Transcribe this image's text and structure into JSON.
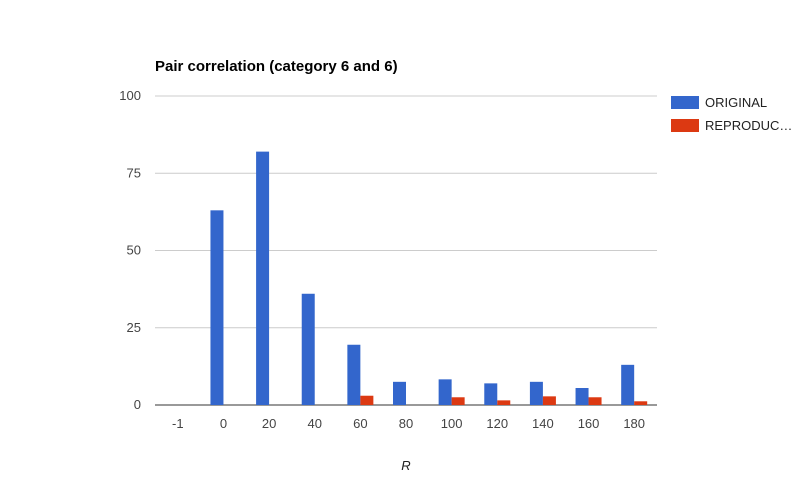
{
  "chart_data": {
    "type": "bar",
    "title": "Pair correlation (category 6 and 6)",
    "xlabel": "R",
    "ylabel": "",
    "categories": [
      "-1",
      "0",
      "20",
      "40",
      "60",
      "80",
      "100",
      "120",
      "140",
      "160",
      "180"
    ],
    "series": [
      {
        "name": "ORIGINAL",
        "color": "#3366cc",
        "values": [
          0,
          63,
          82,
          36,
          19.5,
          7.5,
          8.3,
          7,
          7.5,
          5.5,
          13
        ]
      },
      {
        "name": "REPRODUC…",
        "color": "#dc3912",
        "values": [
          0,
          0,
          0,
          0,
          3,
          0,
          2.5,
          1.5,
          2.8,
          2.5,
          1.2
        ]
      }
    ],
    "ylim": [
      0,
      100
    ],
    "yticks": [
      "0",
      "25",
      "50",
      "75",
      "100"
    ],
    "grid": true,
    "legend": "right"
  }
}
